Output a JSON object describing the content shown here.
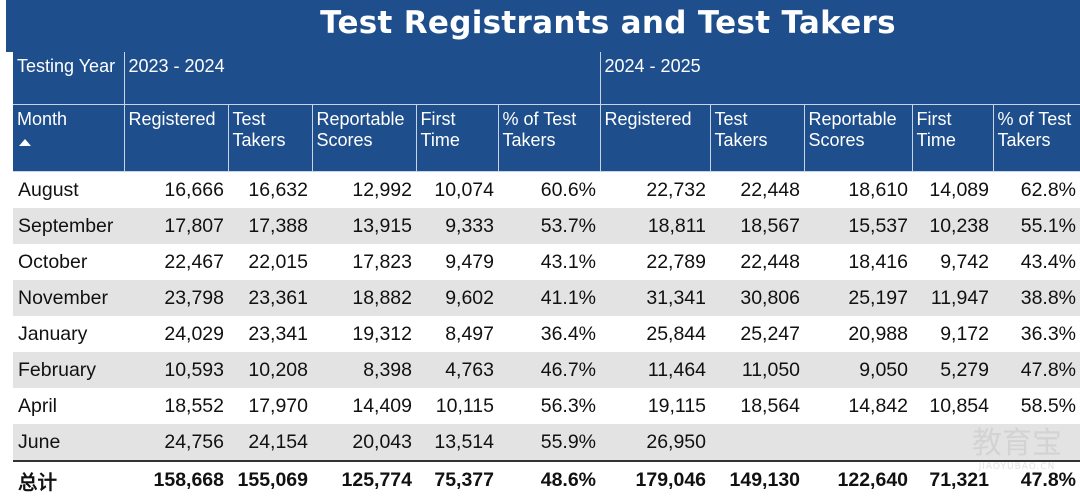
{
  "title": "Test Registrants and Test Takers",
  "header": {
    "year_label": "Testing Year",
    "years": [
      "2023 - 2024",
      "2024 - 2025"
    ],
    "month_label": "Month",
    "columns": [
      "Registered",
      "Test Takers",
      "Reportable Scores",
      "First Time",
      "% of Test Takers"
    ]
  },
  "rows": [
    {
      "month": "August",
      "y1": [
        "16,666",
        "16,632",
        "12,992",
        "10,074",
        "60.6%"
      ],
      "y2": [
        "22,732",
        "22,448",
        "18,610",
        "14,089",
        "62.8%"
      ]
    },
    {
      "month": "September",
      "y1": [
        "17,807",
        "17,388",
        "13,915",
        "9,333",
        "53.7%"
      ],
      "y2": [
        "18,811",
        "18,567",
        "15,537",
        "10,238",
        "55.1%"
      ]
    },
    {
      "month": "October",
      "y1": [
        "22,467",
        "22,015",
        "17,823",
        "9,479",
        "43.1%"
      ],
      "y2": [
        "22,789",
        "22,448",
        "18,416",
        "9,742",
        "43.4%"
      ]
    },
    {
      "month": "November",
      "y1": [
        "23,798",
        "23,361",
        "18,882",
        "9,602",
        "41.1%"
      ],
      "y2": [
        "31,341",
        "30,806",
        "25,197",
        "11,947",
        "38.8%"
      ]
    },
    {
      "month": "January",
      "y1": [
        "24,029",
        "23,341",
        "19,312",
        "8,497",
        "36.4%"
      ],
      "y2": [
        "25,844",
        "25,247",
        "20,988",
        "9,172",
        "36.3%"
      ]
    },
    {
      "month": "February",
      "y1": [
        "10,593",
        "10,208",
        "8,398",
        "4,763",
        "46.7%"
      ],
      "y2": [
        "11,464",
        "11,050",
        "9,050",
        "5,279",
        "47.8%"
      ]
    },
    {
      "month": "April",
      "y1": [
        "18,552",
        "17,970",
        "14,409",
        "10,115",
        "56.3%"
      ],
      "y2": [
        "19,115",
        "18,564",
        "14,842",
        "10,854",
        "58.5%"
      ]
    },
    {
      "month": "June",
      "y1": [
        "24,756",
        "24,154",
        "20,043",
        "13,514",
        "55.9%"
      ],
      "y2": [
        "26,950",
        "",
        "",
        "",
        ""
      ]
    }
  ],
  "total": {
    "label": "总计",
    "y1": [
      "158,668",
      "155,069",
      "125,774",
      "75,377",
      "48.6%"
    ],
    "y2": [
      "179,046",
      "149,130",
      "122,640",
      "71,321",
      "47.8%"
    ]
  },
  "watermark": {
    "text": "教育宝",
    "sub": "JIAOYUBAO.CN"
  },
  "colors": {
    "header_bg": "#1e4e8c",
    "stripe": "#e3e3e3"
  }
}
